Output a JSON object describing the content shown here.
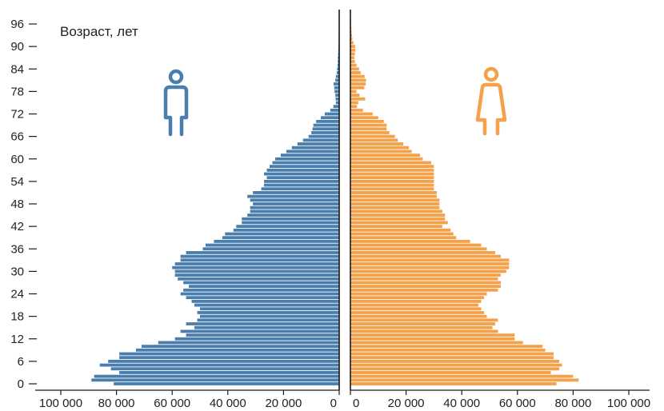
{
  "chart_data": {
    "type": "bar",
    "orientation": "horizontal",
    "layout": "population-pyramid",
    "title": "",
    "ylabel": "Возраст, лет",
    "xlim": [
      0,
      100000
    ],
    "ylim": [
      0,
      98
    ],
    "y_ticks": [
      "0",
      "6",
      "12",
      "18",
      "24",
      "30",
      "36",
      "42",
      "48",
      "54",
      "60",
      "66",
      "72",
      "78",
      "84",
      "90",
      "96"
    ],
    "x_ticks_left": [
      "100 000",
      "80 000",
      "60 000",
      "40 000",
      "20 000",
      "0"
    ],
    "x_ticks_right": [
      "0",
      "20 000",
      "40 000",
      "60 000",
      "80 000",
      "100 000"
    ],
    "grid": false,
    "legend": "none",
    "icons": {
      "male": "male-person-icon",
      "female": "female-person-icon"
    },
    "ages": [
      0,
      1,
      2,
      3,
      4,
      5,
      6,
      7,
      8,
      9,
      10,
      11,
      12,
      13,
      14,
      15,
      16,
      17,
      18,
      19,
      20,
      21,
      22,
      23,
      24,
      25,
      26,
      27,
      28,
      29,
      30,
      31,
      32,
      33,
      34,
      35,
      36,
      37,
      38,
      39,
      40,
      41,
      42,
      43,
      44,
      45,
      46,
      47,
      48,
      49,
      50,
      51,
      52,
      53,
      54,
      55,
      56,
      57,
      58,
      59,
      60,
      61,
      62,
      63,
      64,
      65,
      66,
      67,
      68,
      69,
      70,
      71,
      72,
      73,
      74,
      75,
      76,
      77,
      78,
      79,
      80,
      81,
      82,
      83,
      84,
      85,
      86,
      87,
      88,
      89,
      90,
      91,
      92,
      93,
      94,
      95,
      96,
      97,
      98
    ],
    "series": [
      {
        "side": "left",
        "color": "#4a7fad",
        "values": [
          81000,
          89000,
          88000,
          79000,
          82000,
          86000,
          83000,
          79000,
          79000,
          73000,
          71000,
          65000,
          59000,
          55000,
          57000,
          52000,
          55000,
          51000,
          50000,
          51000,
          50000,
          52000,
          53000,
          55000,
          57000,
          56000,
          54000,
          56000,
          58000,
          59000,
          59000,
          60000,
          59000,
          57000,
          57000,
          55000,
          49000,
          48000,
          45000,
          42000,
          41000,
          38000,
          37000,
          35000,
          35000,
          33000,
          32000,
          32000,
          31000,
          32000,
          33000,
          31000,
          28000,
          27000,
          27000,
          26000,
          27000,
          26000,
          25000,
          24000,
          23000,
          21000,
          19000,
          17000,
          15000,
          13000,
          11000,
          10000,
          9600,
          9300,
          8300,
          6600,
          5200,
          3200,
          2100,
          1200,
          1300,
          1400,
          1700,
          1800,
          2000,
          1400,
          1200,
          900,
          750,
          600,
          520,
          480,
          380,
          340,
          280,
          240,
          200,
          170,
          140,
          120,
          110,
          90,
          80
        ]
      },
      {
        "side": "right",
        "color": "#f5a14a",
        "values": [
          74000,
          82000,
          80000,
          72000,
          75000,
          76000,
          75000,
          73000,
          73000,
          70000,
          69000,
          62000,
          59000,
          59000,
          53000,
          51000,
          52000,
          53000,
          49000,
          48000,
          47000,
          46000,
          47000,
          48000,
          49000,
          53000,
          54000,
          54000,
          53000,
          54000,
          56000,
          57000,
          57000,
          57000,
          54000,
          52000,
          49000,
          47000,
          43000,
          38000,
          37000,
          36000,
          33000,
          35000,
          34000,
          34000,
          33000,
          32000,
          32000,
          32000,
          31000,
          31000,
          30000,
          30000,
          30000,
          30000,
          30000,
          30000,
          30000,
          29000,
          26000,
          25000,
          22000,
          21000,
          19000,
          17000,
          16000,
          14000,
          13000,
          13000,
          12000,
          10000,
          8000,
          4500,
          2300,
          2800,
          5300,
          3300,
          2200,
          5000,
          5500,
          5600,
          5100,
          3700,
          3100,
          2200,
          1600,
          1400,
          1600,
          1800,
          1700,
          1100,
          700,
          550,
          420,
          340,
          260,
          190,
          140
        ]
      }
    ]
  }
}
